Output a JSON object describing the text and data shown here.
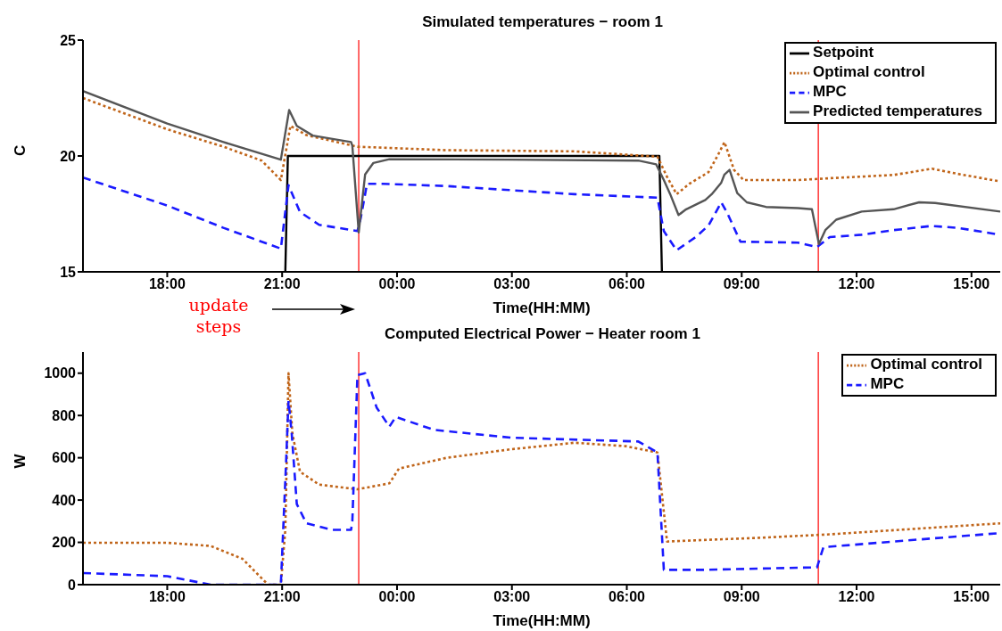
{
  "chart_data": [
    {
      "type": "line",
      "title": "Simulated temperatures − room 1",
      "xlabel": "Time(HH:MM)",
      "ylabel": "C",
      "xlim": [
        "2000-01-01T15:48",
        "2000-01-02T15:45"
      ],
      "xticks": [
        {
          "value": "2000-01-01T18:00",
          "label": "18:00"
        },
        {
          "value": "2000-01-01T21:00",
          "label": "21:00"
        },
        {
          "value": "2000-01-02T00:00",
          "label": "00:00"
        },
        {
          "value": "2000-01-02T03:00",
          "label": "03:00"
        },
        {
          "value": "2000-01-02T06:00",
          "label": "06:00"
        },
        {
          "value": "2000-01-02T09:00",
          "label": "09:00"
        },
        {
          "value": "2000-01-02T12:00",
          "label": "12:00"
        },
        {
          "value": "2000-01-02T15:00",
          "label": "15:00"
        }
      ],
      "ylim": [
        15,
        25
      ],
      "yticks": [
        15,
        20,
        25
      ],
      "legend": "top right",
      "grid": false,
      "marker": "none",
      "series": [
        {
          "name": "Setpoint",
          "color": "#000000",
          "line_style": "solid",
          "x": [
            "2000-01-01T21:05",
            "2000-01-01T21:09",
            "2000-01-02T06:51",
            "2000-01-02T06:55"
          ],
          "values": [
            15,
            20,
            20,
            15
          ]
        },
        {
          "name": "Optimal control",
          "color": "#c0651a",
          "line_style": "dotted",
          "x": [
            "2000-01-01T15:48",
            "2000-01-01T18:00",
            "2000-01-01T19:28",
            "2000-01-01T20:28",
            "2000-01-01T20:58",
            "2000-01-01T21:13",
            "2000-01-01T21:38",
            "2000-01-01T22:58",
            "2000-01-02T01:18",
            "2000-01-02T04:38",
            "2000-01-02T06:48",
            "2000-01-02T07:03",
            "2000-01-02T07:18",
            "2000-01-02T07:38",
            "2000-01-02T08:08",
            "2000-01-02T08:23",
            "2000-01-02T08:33",
            "2000-01-02T08:48",
            "2000-01-02T09:03",
            "2000-01-02T10:28",
            "2000-01-02T11:18",
            "2000-01-02T12:58",
            "2000-01-02T13:58",
            "2000-01-02T14:38",
            "2000-01-02T15:45"
          ],
          "values": [
            22.5,
            21.15,
            20.4,
            19.8,
            18.96,
            21.3,
            20.9,
            20.4,
            20.25,
            20.2,
            19.97,
            19.1,
            18.35,
            18.8,
            19.3,
            20.05,
            20.6,
            19.4,
            18.96,
            18.96,
            19.04,
            19.18,
            19.45,
            19.23,
            18.9
          ]
        },
        {
          "name": "MPC",
          "color": "#1a1aff",
          "line_style": "dashed",
          "x": [
            "2000-01-01T15:48",
            "2000-01-01T18:00",
            "2000-01-01T19:28",
            "2000-01-01T20:58",
            "2000-01-01T21:10",
            "2000-01-01T21:28",
            "2000-01-01T21:58",
            "2000-01-01T22:58",
            "2000-01-01T23:03",
            "2000-01-01T23:13",
            "2000-01-01T23:38",
            "2000-01-02T01:18",
            "2000-01-02T04:38",
            "2000-01-02T06:48",
            "2000-01-02T06:58",
            "2000-01-02T07:18",
            "2000-01-02T07:48",
            "2000-01-02T08:08",
            "2000-01-02T08:28",
            "2000-01-02T08:38",
            "2000-01-02T08:58",
            "2000-01-02T10:28",
            "2000-01-02T10:58",
            "2000-01-02T11:18",
            "2000-01-02T12:08",
            "2000-01-02T12:58",
            "2000-01-02T13:58",
            "2000-01-02T14:38",
            "2000-01-02T15:45"
          ],
          "values": [
            19.07,
            17.86,
            16.9,
            16.0,
            18.74,
            17.58,
            17.03,
            16.76,
            17.3,
            18.8,
            18.8,
            18.7,
            18.35,
            18.2,
            16.76,
            15.93,
            16.5,
            17.0,
            18.0,
            17.5,
            16.3,
            16.26,
            16.07,
            16.5,
            16.6,
            16.8,
            16.98,
            16.9,
            16.6
          ]
        },
        {
          "name": "Predicted temperatures",
          "color": "#555555",
          "line_style": "solid",
          "x": [
            "2000-01-01T15:48",
            "2000-01-01T18:00",
            "2000-01-01T19:28",
            "2000-01-01T20:58",
            "2000-01-01T21:11",
            "2000-01-01T21:23",
            "2000-01-01T21:48",
            "2000-01-01T22:48",
            "2000-01-01T22:50",
            "2000-01-01T23:00",
            "2000-01-01T23:10",
            "2000-01-01T23:23",
            "2000-01-01T23:48",
            "2000-01-02T02:58",
            "2000-01-02T06:18",
            "2000-01-02T06:46",
            "2000-01-02T06:58",
            "2000-01-02T07:08",
            "2000-01-02T07:21",
            "2000-01-02T07:33",
            "2000-01-02T07:48",
            "2000-01-02T08:03",
            "2000-01-02T08:13",
            "2000-01-02T08:28",
            "2000-01-02T08:33",
            "2000-01-02T08:41",
            "2000-01-02T08:53",
            "2000-01-02T09:08",
            "2000-01-02T09:38",
            "2000-01-02T10:28",
            "2000-01-02T10:50",
            "2000-01-02T11:01",
            "2000-01-02T11:11",
            "2000-01-02T11:28",
            "2000-01-02T12:08",
            "2000-01-02T12:58",
            "2000-01-02T13:38",
            "2000-01-02T14:03",
            "2000-01-02T15:45"
          ],
          "values": [
            22.8,
            21.4,
            20.6,
            19.84,
            21.98,
            21.3,
            20.88,
            20.6,
            20.44,
            16.7,
            19.2,
            19.7,
            19.86,
            19.84,
            19.8,
            19.64,
            18.96,
            18.35,
            17.45,
            17.7,
            17.9,
            18.1,
            18.35,
            18.85,
            19.2,
            19.4,
            18.4,
            18.0,
            17.8,
            17.75,
            17.7,
            16.2,
            16.8,
            17.25,
            17.6,
            17.7,
            18.0,
            17.97,
            17.6
          ]
        }
      ],
      "ref_lines": [
        {
          "axis": "x",
          "value": "2000-01-01T23:00",
          "color": "#ff0000"
        },
        {
          "axis": "x",
          "value": "2000-01-02T11:00",
          "color": "#ff0000"
        }
      ],
      "annotations": [
        "update steps"
      ]
    },
    {
      "type": "line",
      "title": "Computed Electrical Power − Heater room 1",
      "xlabel": "Time(HH:MM)",
      "ylabel": "W",
      "xlim": [
        "2000-01-01T15:48",
        "2000-01-02T15:45"
      ],
      "xticks": [
        {
          "value": "2000-01-01T18:00",
          "label": "18:00"
        },
        {
          "value": "2000-01-01T21:00",
          "label": "21:00"
        },
        {
          "value": "2000-01-02T00:00",
          "label": "00:00"
        },
        {
          "value": "2000-01-02T03:00",
          "label": "03:00"
        },
        {
          "value": "2000-01-02T06:00",
          "label": "06:00"
        },
        {
          "value": "2000-01-02T09:00",
          "label": "09:00"
        },
        {
          "value": "2000-01-02T12:00",
          "label": "12:00"
        },
        {
          "value": "2000-01-02T15:00",
          "label": "15:00"
        }
      ],
      "ylim": [
        0,
        1100
      ],
      "yticks": [
        0,
        200,
        400,
        600,
        800,
        1000
      ],
      "legend": "top right",
      "grid": false,
      "marker": "none",
      "series": [
        {
          "name": "Optimal control",
          "color": "#c0651a",
          "line_style": "dotted",
          "x": [
            "2000-01-01T15:48",
            "2000-01-01T18:00",
            "2000-01-01T19:08",
            "2000-01-01T19:58",
            "2000-01-01T20:28",
            "2000-01-01T20:38",
            "2000-01-01T20:58",
            "2000-01-01T21:05",
            "2000-01-01T21:10",
            "2000-01-01T21:16",
            "2000-01-01T21:28",
            "2000-01-01T21:58",
            "2000-01-01T22:58",
            "2000-01-01T23:48",
            "2000-01-02T00:03",
            "2000-01-02T01:18",
            "2000-01-02T02:58",
            "2000-01-02T04:38",
            "2000-01-02T05:58",
            "2000-01-02T06:48",
            "2000-01-02T07:03",
            "2000-01-02T09:38",
            "2000-01-02T11:18",
            "2000-01-02T15:45"
          ],
          "values": [
            198,
            198,
            183,
            122,
            30,
            0,
            0,
            259,
            1000,
            716,
            534,
            473,
            451,
            479,
            549,
            600,
            640,
            671,
            655,
            625,
            204,
            223,
            238,
            290
          ]
        },
        {
          "name": "MPC",
          "color": "#1a1aff",
          "line_style": "dashed",
          "x": [
            "2000-01-01T15:48",
            "2000-01-01T18:00",
            "2000-01-01T19:08",
            "2000-01-01T20:58",
            "2000-01-01T21:06",
            "2000-01-01T21:10",
            "2000-01-01T21:15",
            "2000-01-01T21:23",
            "2000-01-01T21:38",
            "2000-01-01T22:18",
            "2000-01-01T22:48",
            "2000-01-01T22:50",
            "2000-01-01T22:58",
            "2000-01-01T23:10",
            "2000-01-01T23:28",
            "2000-01-01T23:48",
            "2000-01-01T23:58",
            "2000-01-02T00:58",
            "2000-01-02T02:58",
            "2000-01-02T06:18",
            "2000-01-02T06:48",
            "2000-01-02T06:58",
            "2000-01-02T07:58",
            "2000-01-02T10:58",
            "2000-01-02T11:08",
            "2000-01-02T12:58",
            "2000-01-02T15:45"
          ],
          "values": [
            55,
            40,
            0,
            0,
            564,
            869,
            716,
            381,
            290,
            259,
            259,
            300,
            991,
            1000,
            838,
            747,
            793,
            732,
            695,
            677,
            625,
            70,
            70,
            82,
            177,
            204,
            244
          ]
        }
      ],
      "ref_lines": [
        {
          "axis": "x",
          "value": "2000-01-01T23:00",
          "color": "#ff0000"
        },
        {
          "axis": "x",
          "value": "2000-01-02T11:00",
          "color": "#ff0000"
        }
      ]
    }
  ]
}
